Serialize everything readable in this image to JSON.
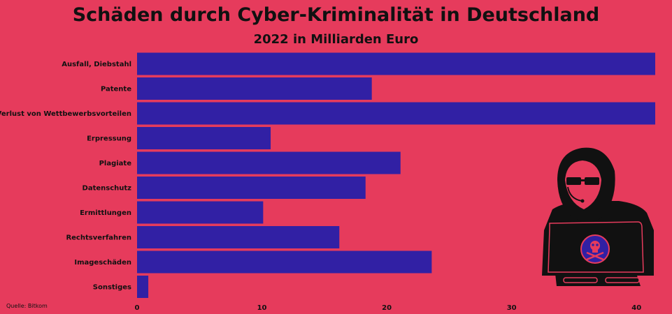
{
  "chart_data": {
    "type": "bar",
    "orientation": "horizontal",
    "title": "Schäden durch Cyber-Kriminalität in Deutschland",
    "subtitle": "2022 in Milliarden Euro",
    "categories": [
      "Ausfall, Diebstahl",
      "Patente",
      "Verlust von Wettbewerbsvorteilen",
      "Erpressung",
      "Plagiate",
      "Datenschutz",
      "Ermittlungen",
      "Rechtsverfahren",
      "Imageschäden",
      "Sonstiges"
    ],
    "values": [
      41.5,
      18.8,
      41.5,
      10.7,
      21.1,
      18.3,
      10.1,
      16.2,
      23.6,
      0.9
    ],
    "xlim": [
      0,
      41.5
    ],
    "x_ticks": [
      "0",
      "10",
      "20",
      "30",
      "40"
    ],
    "x_tick_values": [
      0,
      10,
      20,
      30,
      40
    ],
    "grid": false,
    "bar_color": "#3120a4"
  },
  "source": "Quelle: Bitkom",
  "colors": {
    "background": "#e63b5c",
    "bar": "#3120a4",
    "illustration": "#111111",
    "skull_circle": "#3120a4"
  },
  "illustration": {
    "icon": "hooded-hacker-with-laptop-skull-icon"
  }
}
